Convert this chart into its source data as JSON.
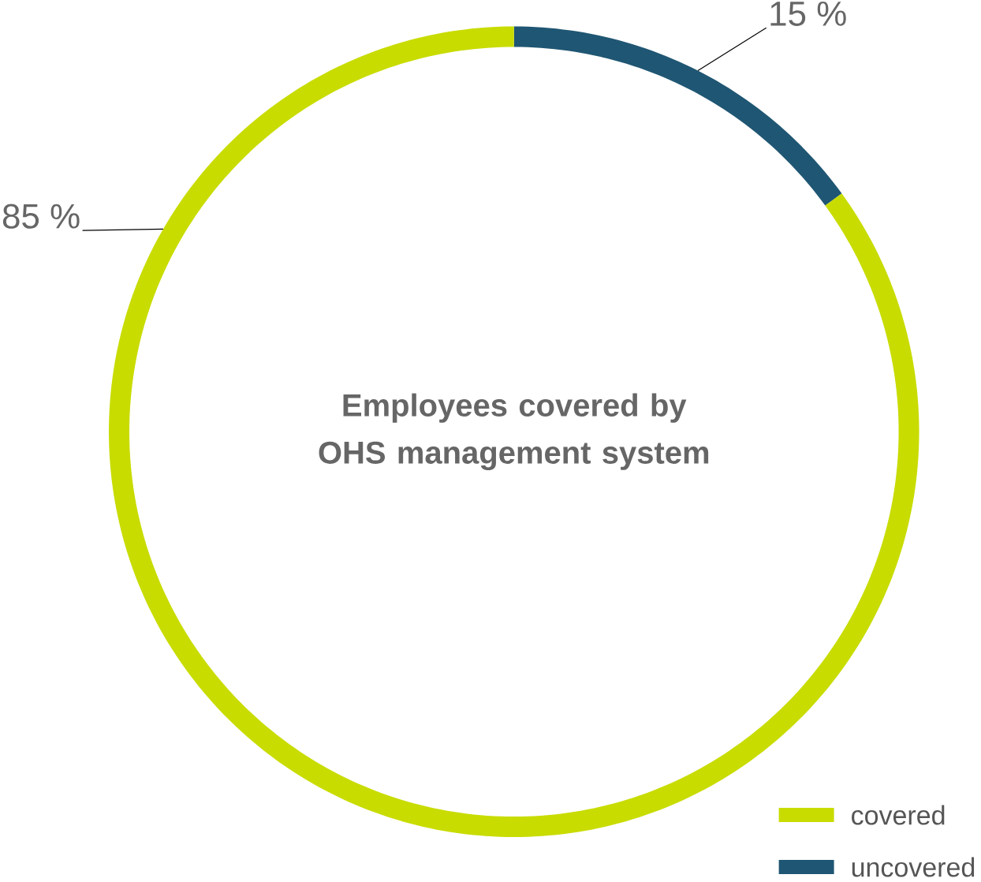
{
  "chart_data": {
    "type": "donut",
    "title": "Employees covered by OHS management system",
    "categories": [
      "covered",
      "uncovered"
    ],
    "values": [
      85,
      15
    ],
    "colors": [
      "#c8dc00",
      "#1f5673"
    ],
    "value_labels": [
      "85 %",
      "15 %"
    ],
    "legend": "bottom right"
  }
}
